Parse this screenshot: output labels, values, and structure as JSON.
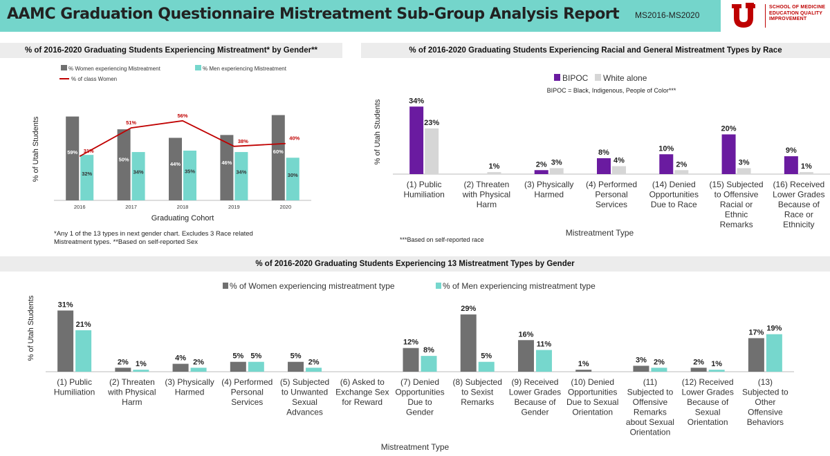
{
  "header": {
    "title": "AAMC Graduation Questionnaire Mistreatment Sub-Group Analysis Report",
    "range": "MS2016-MS2020",
    "logo_lines": [
      "SCHOOL OF MEDICINE",
      "EDUCATION QUALITY",
      "IMPROVEMENT"
    ]
  },
  "colors": {
    "header": "#74d5cb",
    "women": "#707070",
    "men": "#76d7cd",
    "line": "#c00000",
    "bipoc": "#6a1ba0",
    "white": "#d6d6d6",
    "brand": "#be0000"
  },
  "panels": {
    "gender_title": "% of 2016-2020 Graduating Students Experiencing Mistreatment* by Gender**",
    "race_title": "% of 2016-2020 Graduating Students Experiencing Racial and General Mistreatment Types by Race",
    "types_title": "% of 2016-2020 Graduating Students Experiencing 13 Mistreatment Types by Gender"
  },
  "notes": {
    "gender_note_1": "*Any 1 of the 13 types in next gender chart.  Excludes 3 Race related",
    "gender_note_2": "Mistreatment types.   **Based on self-reported Sex",
    "race_note": "***Based on self-reported race",
    "bipoc_definition": "BIPOC = Black, Indigenous, People of Color***"
  },
  "chart_data": [
    {
      "type": "bar",
      "title": "% of 2016-2020 Graduating Students Experiencing Mistreatment* by Gender**",
      "categories": [
        "2016",
        "2017",
        "2018",
        "2019",
        "2020"
      ],
      "series": [
        {
          "name": "% Women experiencing Mistreatment",
          "values": [
            59,
            50,
            44,
            46,
            60
          ],
          "labels": [
            "59%",
            "50%",
            "44%",
            "46%",
            "60%"
          ]
        },
        {
          "name": "% Men experiencing Mistreatment",
          "values": [
            32,
            34,
            35,
            34,
            30
          ],
          "labels": [
            "32%",
            "34%",
            "35%",
            "34%",
            "30%"
          ]
        },
        {
          "name": "% of class Women",
          "kind": "line",
          "values": [
            31,
            51,
            56,
            38,
            40
          ],
          "labels": [
            "31%",
            "51%",
            "56%",
            "38%",
            "40%"
          ]
        }
      ],
      "xlabel": "Graduating Cohort",
      "ylabel": "% of Utah Students",
      "ylim": [
        0,
        70
      ]
    },
    {
      "type": "bar",
      "title": "% of 2016-2020 Graduating Students Experiencing Racial and General Mistreatment Types by Race",
      "categories": [
        [
          "(1) Public",
          "Humiliation"
        ],
        [
          "(2) Threaten",
          "with Physical",
          "Harm"
        ],
        [
          "(3) Physically",
          "Harmed"
        ],
        [
          "(4) Performed",
          "Personal",
          "Services"
        ],
        [
          "(14) Denied",
          "Opportunities",
          "Due to Race"
        ],
        [
          "(15) Subjected",
          "to Offensive",
          "Racial or",
          "Ethnic",
          "Remarks"
        ],
        [
          "(16) Received",
          "Lower Grades",
          "Because of",
          "Race or",
          "Ethnicity"
        ]
      ],
      "series": [
        {
          "name": "BIPOC",
          "values": [
            34,
            0,
            2,
            8,
            10,
            20,
            9
          ],
          "labels": [
            "34%",
            "",
            "2%",
            "8%",
            "10%",
            "20%",
            "9%"
          ]
        },
        {
          "name": "White alone",
          "values": [
            23,
            1,
            3,
            4,
            2,
            3,
            1
          ],
          "labels": [
            "23%",
            "1%",
            "3%",
            "4%",
            "2%",
            "3%",
            "1%"
          ]
        }
      ],
      "xlabel": "Mistreatment Type",
      "ylabel": "% of Utah Students",
      "ylim": [
        0,
        40
      ]
    },
    {
      "type": "bar",
      "title": "% of 2016-2020 Graduating Students Experiencing 13 Mistreatment Types by Gender",
      "categories": [
        [
          "(1) Public",
          "Humiliation"
        ],
        [
          "(2) Threaten",
          "with Physical",
          "Harm"
        ],
        [
          "(3) Physically",
          "Harmed"
        ],
        [
          "(4) Performed",
          "Personal",
          "Services"
        ],
        [
          "(5) Subjected",
          "to Unwanted",
          "Sexual",
          "Advances"
        ],
        [
          "(6) Asked to",
          "Exchange Sex",
          "for Reward"
        ],
        [
          "(7) Denied",
          "Opportunities",
          "Due to",
          "Gender"
        ],
        [
          "(8) Subjected",
          "to Sexist",
          "Remarks"
        ],
        [
          "(9) Received",
          "Lower Grades",
          "Because of",
          "Gender"
        ],
        [
          "(10) Denied",
          "Opportunities",
          "Due to Sexual",
          "Orientation"
        ],
        [
          "(11)",
          "Subjected to",
          "Offensive",
          "Remarks",
          "about Sexual",
          "Orientation"
        ],
        [
          "(12) Received",
          "Lower Grades",
          "Because of",
          "Sexual",
          "Orientation"
        ],
        [
          "(13)",
          "Subjected to",
          "Other",
          "Offensive",
          "Behaviors"
        ]
      ],
      "series": [
        {
          "name": "% of Women experiencing mistreatment type",
          "values": [
            31,
            2,
            4,
            5,
            5,
            0,
            12,
            29,
            16,
            1,
            3,
            2,
            17
          ],
          "labels": [
            "31%",
            "2%",
            "4%",
            "5%",
            "5%",
            "",
            "12%",
            "29%",
            "16%",
            "1%",
            "3%",
            "2%",
            "17%"
          ]
        },
        {
          "name": "% of Men experiencing mistreatment type",
          "values": [
            21,
            1,
            2,
            5,
            2,
            0,
            8,
            5,
            11,
            0,
            2,
            1,
            19
          ],
          "labels": [
            "21%",
            "1%",
            "2%",
            "5%",
            "2%",
            "",
            "8%",
            "5%",
            "11%",
            "",
            "2%",
            "1%",
            "19%"
          ]
        }
      ],
      "xlabel": "Mistreatment Type",
      "ylabel": "% of Utah Students",
      "ylim": [
        0,
        35
      ]
    }
  ]
}
